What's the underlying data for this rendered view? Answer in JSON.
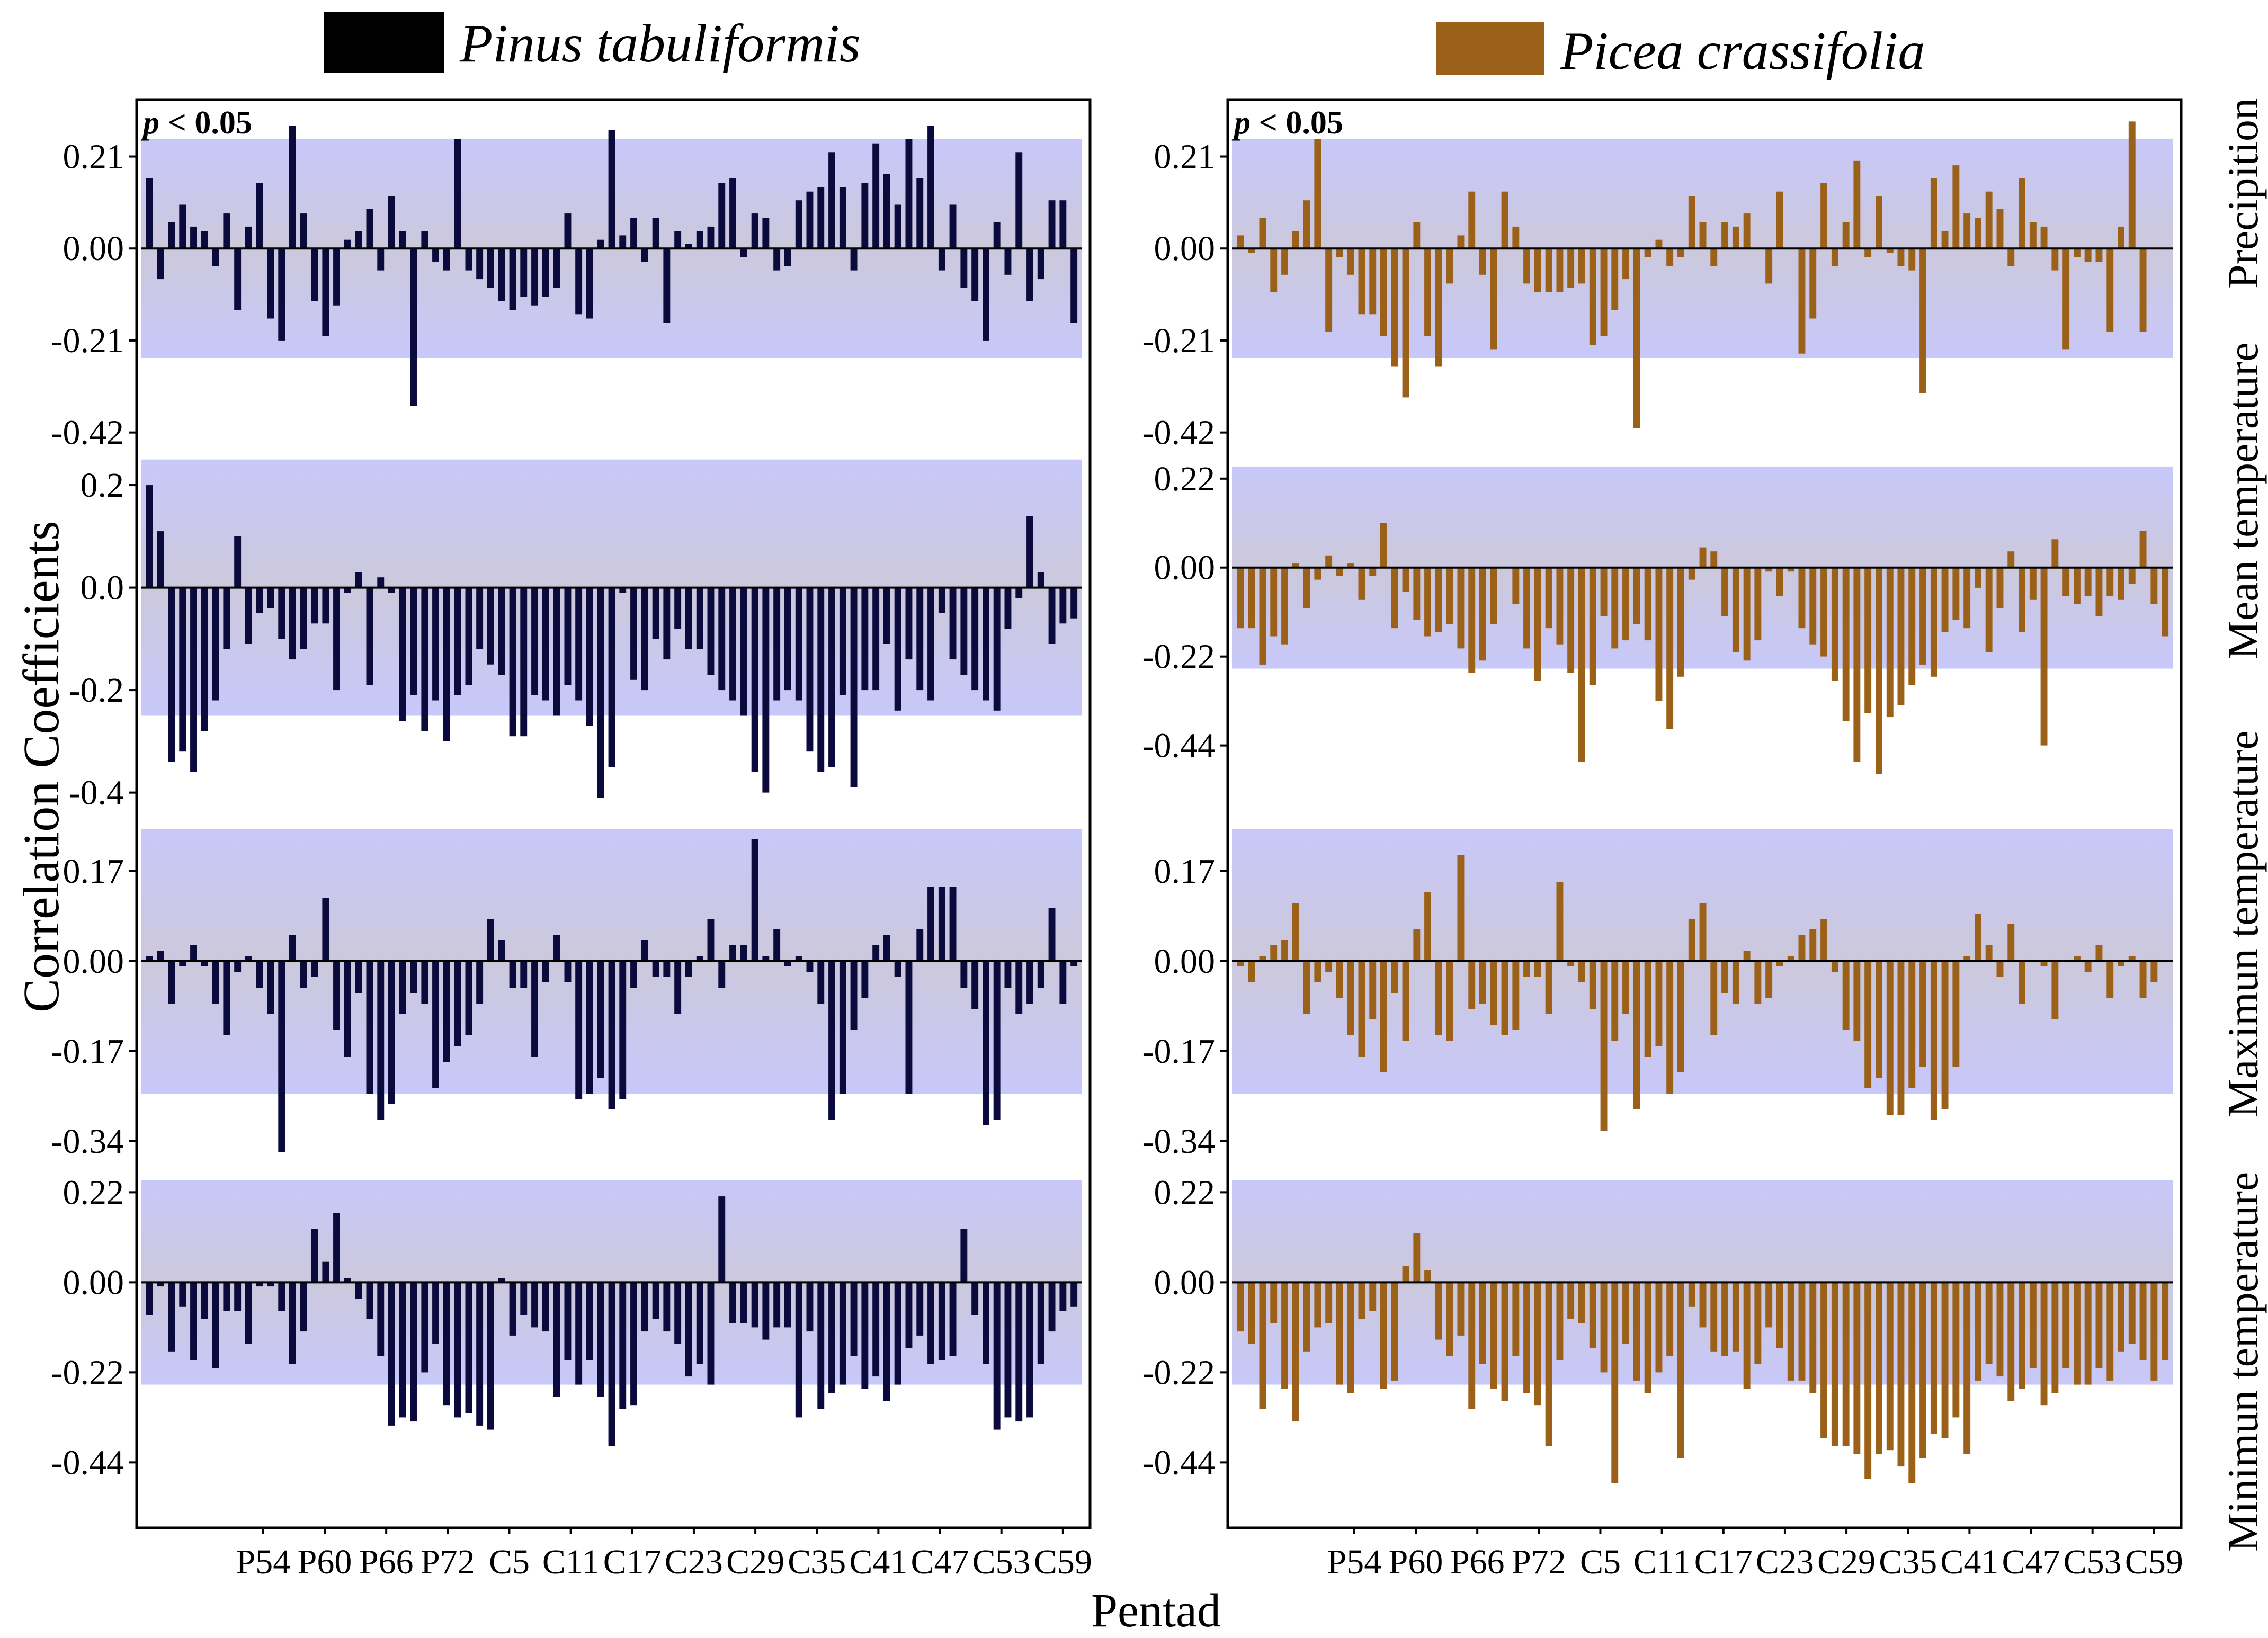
{
  "legend": {
    "left": {
      "label": "Pinus tabuliformis",
      "color": "#000000"
    },
    "right": {
      "label": "Picea crassifolia",
      "color": "#9b6118"
    }
  },
  "ylabel": "Correlation Coefficients",
  "xlabel": "Pentad",
  "significance_label": "p < 0.05",
  "row_labels": [
    "Precipition",
    "Mean temperature",
    "Maximun temperature",
    "Minimun temperature"
  ],
  "x_tick_labels": [
    "P54",
    "P60",
    "P66",
    "P72",
    "C5",
    "C11",
    "C17",
    "C23",
    "C29",
    "C35",
    "C41",
    "C47",
    "C53",
    "C59"
  ],
  "colors": {
    "band": "#c8c8fa",
    "pinus_bar": "#0a0a3c",
    "picea_bar": "#9b6118",
    "zero_line": "#000000"
  },
  "chart_data": [
    {
      "type": "bar",
      "species": "Pinus tabuliformis",
      "variable": "Precipition",
      "yticks": [
        0.21,
        0.0,
        -0.21,
        -0.42
      ],
      "ytick_labels": [
        "0.21",
        "0.00",
        "-0.21",
        "-0.42"
      ],
      "ylim": [
        -0.47,
        0.34
      ],
      "significance_band": [
        -0.25,
        0.25
      ],
      "values": [
        0.16,
        -0.07,
        0.06,
        0.1,
        0.05,
        0.04,
        -0.04,
        0.08,
        -0.14,
        0.05,
        0.15,
        -0.16,
        -0.21,
        0.28,
        0.08,
        -0.12,
        -0.2,
        -0.13,
        0.02,
        0.04,
        0.09,
        -0.05,
        0.12,
        0.04,
        -0.36,
        0.04,
        -0.03,
        -0.05,
        0.25,
        -0.05,
        -0.07,
        -0.09,
        -0.12,
        -0.14,
        -0.11,
        -0.13,
        -0.11,
        -0.09,
        0.08,
        -0.15,
        -0.16,
        0.02,
        0.27,
        0.03,
        0.07,
        -0.03,
        0.07,
        -0.17,
        0.04,
        0.01,
        0.04,
        0.05,
        0.15,
        0.16,
        -0.02,
        0.08,
        0.07,
        -0.05,
        -0.04,
        0.11,
        0.13,
        0.14,
        0.22,
        0.14,
        -0.05,
        0.15,
        0.24,
        0.17,
        0.1,
        0.25,
        0.16,
        0.28,
        -0.05,
        0.1,
        -0.09,
        -0.12,
        -0.21,
        0.06,
        -0.06,
        0.22,
        -0.12,
        -0.07,
        0.11,
        0.11,
        -0.17
      ]
    },
    {
      "type": "bar",
      "species": "Pinus tabuliformis",
      "variable": "Mean temperature",
      "yticks": [
        0.2,
        0.0,
        -0.2,
        -0.4
      ],
      "ytick_labels": [
        "0.2",
        "0.0",
        "-0.2",
        "-0.4"
      ],
      "ylim": [
        -0.45,
        0.26
      ],
      "significance_band": [
        -0.25,
        0.25
      ],
      "values": [
        0.2,
        0.11,
        -0.34,
        -0.32,
        -0.36,
        -0.28,
        -0.22,
        -0.12,
        0.1,
        -0.11,
        -0.05,
        -0.04,
        -0.1,
        -0.14,
        -0.12,
        -0.07,
        -0.07,
        -0.2,
        -0.01,
        0.03,
        -0.19,
        0.02,
        -0.01,
        -0.26,
        -0.21,
        -0.28,
        -0.22,
        -0.3,
        -0.21,
        -0.19,
        -0.12,
        -0.15,
        -0.17,
        -0.29,
        -0.29,
        -0.21,
        -0.22,
        -0.25,
        -0.19,
        -0.22,
        -0.27,
        -0.41,
        -0.35,
        -0.01,
        -0.18,
        -0.2,
        -0.1,
        -0.14,
        -0.08,
        -0.12,
        -0.12,
        -0.17,
        -0.2,
        -0.22,
        -0.25,
        -0.36,
        -0.4,
        -0.22,
        -0.2,
        -0.22,
        -0.32,
        -0.36,
        -0.35,
        -0.21,
        -0.39,
        -0.2,
        -0.2,
        -0.11,
        -0.24,
        -0.14,
        -0.2,
        -0.22,
        -0.05,
        -0.14,
        -0.17,
        -0.2,
        -0.22,
        -0.24,
        -0.08,
        -0.02,
        0.14,
        0.03,
        -0.11,
        -0.07,
        -0.06
      ]
    },
    {
      "type": "bar",
      "species": "Pinus tabuliformis",
      "variable": "Maximun temperature",
      "yticks": [
        0.17,
        0.0,
        -0.17,
        -0.34
      ],
      "ytick_labels": [
        "0.17",
        "0.00",
        "-0.17",
        "-0.34"
      ],
      "ylim": [
        -0.39,
        0.27
      ],
      "significance_band": [
        -0.25,
        0.25
      ],
      "values": [
        0.01,
        0.02,
        -0.08,
        -0.01,
        0.03,
        -0.01,
        -0.08,
        -0.14,
        -0.02,
        0.01,
        -0.05,
        -0.1,
        -0.36,
        0.05,
        -0.05,
        -0.03,
        0.12,
        -0.13,
        -0.18,
        -0.06,
        -0.25,
        -0.3,
        -0.27,
        -0.1,
        -0.06,
        -0.08,
        -0.24,
        -0.19,
        -0.16,
        -0.14,
        -0.08,
        0.08,
        0.04,
        -0.05,
        -0.05,
        -0.18,
        -0.04,
        0.05,
        -0.04,
        -0.26,
        -0.25,
        -0.22,
        -0.28,
        -0.26,
        -0.05,
        0.04,
        -0.03,
        -0.03,
        -0.1,
        -0.03,
        0.01,
        0.08,
        -0.05,
        0.03,
        0.03,
        0.23,
        0.01,
        0.06,
        -0.01,
        0.01,
        -0.02,
        -0.08,
        -0.3,
        -0.25,
        -0.13,
        -0.07,
        0.03,
        0.05,
        -0.03,
        -0.25,
        0.06,
        0.14,
        0.14,
        0.14,
        -0.05,
        -0.09,
        -0.31,
        -0.3,
        -0.05,
        -0.1,
        -0.08,
        -0.05,
        0.1,
        -0.08,
        -0.01
      ]
    },
    {
      "type": "bar",
      "species": "Pinus tabuliformis",
      "variable": "Minimun temperature",
      "yticks": [
        0.22,
        0.0,
        -0.22,
        -0.44
      ],
      "ytick_labels": [
        "0.22",
        "0.00",
        "-0.22",
        "-0.44"
      ],
      "ylim": [
        -0.6,
        0.28
      ],
      "significance_band": [
        -0.25,
        0.25
      ],
      "values": [
        -0.08,
        -0.01,
        -0.17,
        -0.06,
        -0.19,
        -0.09,
        -0.21,
        -0.07,
        -0.07,
        -0.15,
        -0.01,
        -0.01,
        -0.07,
        -0.2,
        -0.12,
        0.13,
        0.05,
        0.17,
        0.01,
        -0.04,
        -0.09,
        -0.18,
        -0.35,
        -0.33,
        -0.34,
        -0.22,
        -0.15,
        -0.3,
        -0.33,
        -0.32,
        -0.35,
        -0.36,
        0.01,
        -0.13,
        -0.08,
        -0.11,
        -0.12,
        -0.28,
        -0.19,
        -0.25,
        -0.19,
        -0.28,
        -0.4,
        -0.31,
        -0.3,
        -0.12,
        -0.09,
        -0.12,
        -0.15,
        -0.23,
        -0.2,
        -0.25,
        0.21,
        -0.1,
        -0.1,
        -0.11,
        -0.14,
        -0.11,
        -0.11,
        -0.33,
        -0.12,
        -0.31,
        -0.27,
        -0.25,
        -0.18,
        -0.26,
        -0.23,
        -0.29,
        -0.25,
        -0.16,
        -0.13,
        -0.2,
        -0.19,
        -0.18,
        0.13,
        -0.08,
        -0.2,
        -0.36,
        -0.33,
        -0.34,
        -0.33,
        -0.2,
        -0.12,
        -0.07,
        -0.06
      ]
    },
    {
      "type": "bar",
      "species": "Picea crassifolia",
      "variable": "Precipition",
      "yticks": [
        0.21,
        0.0,
        -0.21,
        -0.42
      ],
      "ytick_labels": [
        "0.21",
        "0.00",
        "-0.21",
        "-0.42"
      ],
      "ylim": [
        -0.47,
        0.34
      ],
      "significance_band": [
        -0.25,
        0.25
      ],
      "values": [
        0.03,
        -0.01,
        0.07,
        -0.1,
        -0.06,
        0.04,
        0.11,
        0.25,
        -0.19,
        -0.02,
        -0.06,
        -0.15,
        -0.15,
        -0.2,
        -0.27,
        -0.34,
        0.06,
        -0.2,
        -0.27,
        -0.08,
        0.03,
        0.13,
        -0.06,
        -0.23,
        0.13,
        0.05,
        -0.08,
        -0.1,
        -0.1,
        -0.1,
        -0.09,
        -0.08,
        -0.22,
        -0.2,
        -0.14,
        -0.07,
        -0.41,
        -0.02,
        0.02,
        -0.04,
        -0.02,
        0.12,
        0.06,
        -0.04,
        0.06,
        0.05,
        0.08,
        0.0,
        -0.08,
        0.13,
        0.0,
        -0.24,
        -0.16,
        0.15,
        -0.04,
        0.06,
        0.2,
        -0.02,
        0.12,
        -0.01,
        -0.04,
        -0.05,
        -0.33,
        0.16,
        0.04,
        0.19,
        0.08,
        0.07,
        0.13,
        0.09,
        -0.04,
        0.16,
        0.06,
        0.05,
        -0.05,
        -0.23,
        -0.02,
        -0.03,
        -0.03,
        -0.19,
        0.05,
        0.29,
        -0.19,
        0.0,
        0.0
      ]
    },
    {
      "type": "bar",
      "species": "Picea crassifolia",
      "variable": "Mean temperature",
      "yticks": [
        0.22,
        0.0,
        -0.22,
        -0.44
      ],
      "ytick_labels": [
        "0.22",
        "0.00",
        "-0.22",
        "-0.44"
      ],
      "ylim": [
        -0.62,
        0.28
      ],
      "significance_band": [
        -0.25,
        0.25
      ],
      "values": [
        -0.15,
        -0.15,
        -0.24,
        -0.17,
        -0.19,
        0.01,
        -0.1,
        -0.03,
        0.03,
        -0.02,
        0.01,
        -0.08,
        -0.02,
        0.11,
        -0.15,
        -0.06,
        -0.13,
        -0.17,
        -0.16,
        -0.14,
        -0.2,
        -0.26,
        -0.23,
        -0.14,
        0.0,
        -0.09,
        -0.2,
        -0.28,
        -0.15,
        -0.19,
        -0.26,
        -0.48,
        -0.29,
        -0.12,
        -0.2,
        -0.18,
        -0.14,
        -0.18,
        -0.33,
        -0.4,
        -0.27,
        -0.03,
        0.05,
        0.04,
        -0.12,
        -0.21,
        -0.23,
        -0.18,
        -0.01,
        -0.07,
        -0.01,
        -0.15,
        -0.19,
        -0.22,
        -0.28,
        -0.38,
        -0.48,
        -0.36,
        -0.51,
        -0.37,
        -0.34,
        -0.29,
        -0.24,
        -0.27,
        -0.16,
        -0.13,
        -0.15,
        -0.05,
        -0.21,
        -0.1,
        0.04,
        -0.16,
        -0.08,
        -0.44,
        0.07,
        -0.07,
        -0.09,
        -0.07,
        -0.12,
        -0.07,
        -0.08,
        -0.04,
        0.09,
        -0.09,
        -0.17
      ]
    },
    {
      "type": "bar",
      "species": "Picea crassifolia",
      "variable": "Maximun temperature",
      "yticks": [
        0.17,
        0.0,
        -0.17,
        -0.34
      ],
      "ytick_labels": [
        "0.17",
        "0.00",
        "-0.17",
        "-0.34"
      ],
      "ylim": [
        -0.39,
        0.27
      ],
      "significance_band": [
        -0.25,
        0.25
      ],
      "values": [
        -0.01,
        -0.04,
        0.01,
        0.03,
        0.04,
        0.11,
        -0.1,
        -0.04,
        -0.02,
        -0.07,
        -0.14,
        -0.18,
        -0.11,
        -0.21,
        -0.06,
        -0.15,
        0.06,
        0.13,
        -0.14,
        -0.15,
        0.2,
        -0.09,
        -0.08,
        -0.12,
        -0.14,
        -0.13,
        -0.03,
        -0.03,
        -0.1,
        0.15,
        -0.01,
        -0.04,
        -0.09,
        -0.32,
        -0.15,
        -0.1,
        -0.28,
        -0.18,
        -0.16,
        -0.25,
        -0.21,
        0.08,
        0.11,
        -0.14,
        -0.06,
        -0.08,
        0.02,
        -0.08,
        -0.07,
        -0.01,
        0.01,
        0.05,
        0.06,
        0.08,
        -0.02,
        -0.13,
        -0.15,
        -0.24,
        -0.22,
        -0.29,
        -0.29,
        -0.24,
        -0.2,
        -0.3,
        -0.28,
        -0.2,
        0.01,
        0.09,
        0.03,
        -0.03,
        0.07,
        -0.08,
        0.0,
        -0.01,
        -0.11,
        0.0,
        0.01,
        -0.02,
        0.03,
        -0.07,
        -0.01,
        0.01,
        -0.07,
        -0.04,
        0.0
      ]
    },
    {
      "type": "bar",
      "species": "Picea crassifolia",
      "variable": "Minimun temperature",
      "yticks": [
        0.22,
        0.0,
        -0.22,
        -0.44
      ],
      "ytick_labels": [
        "0.22",
        "0.00",
        "-0.22",
        "-0.44"
      ],
      "ylim": [
        -0.6,
        0.28
      ],
      "significance_band": [
        -0.25,
        0.25
      ],
      "values": [
        -0.12,
        -0.15,
        -0.31,
        -0.1,
        -0.26,
        -0.34,
        -0.17,
        -0.11,
        -0.1,
        -0.25,
        -0.27,
        -0.09,
        -0.07,
        -0.26,
        -0.24,
        0.04,
        0.12,
        0.03,
        -0.14,
        -0.18,
        -0.13,
        -0.31,
        -0.2,
        -0.26,
        -0.29,
        -0.18,
        -0.27,
        -0.3,
        -0.4,
        -0.19,
        -0.09,
        -0.1,
        -0.16,
        -0.22,
        -0.49,
        -0.15,
        -0.24,
        -0.27,
        -0.22,
        -0.18,
        -0.43,
        -0.06,
        -0.11,
        -0.17,
        -0.18,
        -0.17,
        -0.26,
        -0.2,
        -0.11,
        -0.16,
        -0.24,
        -0.24,
        -0.27,
        -0.38,
        -0.4,
        -0.4,
        -0.42,
        -0.48,
        -0.42,
        -0.41,
        -0.45,
        -0.49,
        -0.43,
        -0.37,
        -0.38,
        -0.33,
        -0.42,
        -0.24,
        -0.2,
        -0.23,
        -0.29,
        -0.26,
        -0.21,
        -0.3,
        -0.27,
        -0.21,
        -0.25,
        -0.25,
        -0.21,
        -0.24,
        -0.17,
        -0.15,
        -0.19,
        -0.24,
        -0.19
      ]
    }
  ]
}
